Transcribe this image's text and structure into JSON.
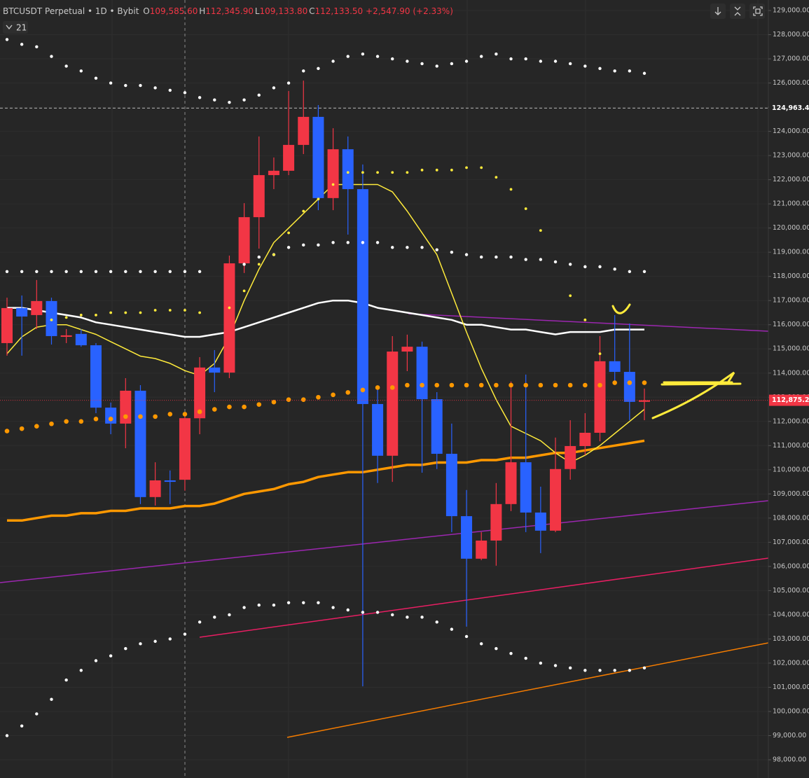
{
  "chart_data": {
    "type": "candlestick",
    "header": {
      "symbol": "BTCUSDT Perpetual • 1D • Bybit",
      "o_label": "O",
      "o": "109,585.60",
      "h_label": "H",
      "h": "112,345.90",
      "l_label": "L",
      "l": "109,133.80",
      "c_label": "C",
      "c": "112,133.50",
      "change": "+2,547.90",
      "change_pct": "(+2.33%)"
    },
    "indicator_count": 21,
    "up_color": "#f23645",
    "down_color": "#2962ff",
    "open": [
      115240,
      116690,
      116400,
      116980,
      115500,
      115620,
      115150,
      112570,
      111910,
      113270,
      108870,
      109560,
      109585.6,
      112130,
      114230,
      114020,
      118540,
      120450,
      122190,
      122370,
      123440,
      124600,
      121240,
      123260,
      121610,
      112720,
      110580,
      114890,
      115090,
      112920,
      110660,
      108080,
      106320,
      107070,
      108580,
      110310,
      108230,
      107480,
      110030,
      110980,
      111530,
      114490,
      114050,
      112810
    ],
    "high": [
      117120,
      117210,
      117850,
      117120,
      115820,
      115820,
      115240,
      112780,
      113790,
      113500,
      110310,
      109970,
      112345.9,
      114660,
      114950,
      118860,
      121030,
      123790,
      122920,
      125670,
      126100,
      125090,
      124130,
      123790,
      122630,
      113360,
      115530,
      115590,
      115300,
      113210,
      111910,
      109160,
      107420,
      109450,
      113650,
      113940,
      109300,
      111330,
      112050,
      112340,
      115530,
      116400,
      116050,
      113360
    ],
    "low": [
      114720,
      114720,
      115820,
      115180,
      115240,
      115090,
      112340,
      111470,
      110890,
      108580,
      108520,
      108580,
      109133.8,
      111470,
      113210,
      113790,
      118140,
      119150,
      121610,
      122190,
      123060,
      120740,
      120740,
      119730,
      101040,
      109450,
      109500,
      114080,
      109880,
      110030,
      107420,
      103510,
      106260,
      106030,
      108290,
      107420,
      106550,
      107420,
      109590,
      110600,
      111180,
      113650,
      112050,
      112050
    ],
    "close": [
      116690,
      116340,
      116980,
      115530,
      115560,
      115150,
      112570,
      111910,
      113270,
      108870,
      109560,
      109500,
      112133.5,
      114230,
      114020,
      118540,
      120450,
      122190,
      122370,
      123440,
      124600,
      121240,
      123260,
      121610,
      112720,
      110580,
      114890,
      115090,
      112920,
      110660,
      108080,
      106320,
      107070,
      108580,
      110310,
      108230,
      107480,
      110030,
      110980,
      111530,
      114490,
      114050,
      112810,
      112875.2
    ],
    "overlays": [
      {
        "style": "line",
        "color": "#ff9800",
        "line_width": 3.5,
        "values": [
          107900,
          107900,
          108000,
          108100,
          108100,
          108200,
          108200,
          108300,
          108300,
          108400,
          108400,
          108400,
          108500,
          108500,
          108600,
          108800,
          109000,
          109100,
          109200,
          109400,
          109500,
          109700,
          109800,
          109900,
          109900,
          110000,
          110100,
          110200,
          110200,
          110300,
          110300,
          110300,
          110400,
          110400,
          110500,
          110500,
          110600,
          110700,
          110700,
          110800,
          110900,
          111000,
          111100,
          111200
        ]
      },
      {
        "style": "line",
        "color": "#ffffff",
        "line_width": 2.5,
        "values": [
          116700,
          116700,
          116600,
          116500,
          116400,
          116300,
          116100,
          116000,
          115900,
          115800,
          115700,
          115600,
          115500,
          115500,
          115600,
          115700,
          115900,
          116100,
          116300,
          116500,
          116700,
          116900,
          117000,
          117000,
          116900,
          116700,
          116600,
          116500,
          116400,
          116300,
          116200,
          116000,
          116000,
          115900,
          115800,
          115800,
          115700,
          115600,
          115700,
          115700,
          115700,
          115800,
          115800,
          115800
        ]
      },
      {
        "style": "line",
        "color": "#ffeb3b",
        "line_width": 1.5,
        "values": [
          114800,
          115500,
          115900,
          116000,
          116000,
          115800,
          115600,
          115300,
          115000,
          114700,
          114600,
          114400,
          114100,
          113900,
          114400,
          115500,
          117000,
          118300,
          119400,
          120000,
          120600,
          121200,
          121800,
          121800,
          121800,
          121800,
          121500,
          120700,
          119800,
          118900,
          117300,
          115700,
          114200,
          112900,
          111800,
          111500,
          111200,
          110700,
          110300,
          110600,
          111000,
          111500,
          112000,
          112500
        ]
      },
      {
        "style": "dots",
        "color": "#ffffff",
        "marker_size": 2.2,
        "values": [
          127800,
          127600,
          127500,
          127100,
          126700,
          126500,
          126200,
          126000,
          125900,
          125900,
          125800,
          125700,
          125600,
          125400,
          125300,
          125200,
          125300,
          125500,
          125800,
          126000,
          126500,
          126600,
          126900,
          127100,
          127200,
          127100,
          127000,
          126900,
          126800,
          126700,
          126800,
          126900,
          127100,
          127200,
          127000,
          127000,
          126900,
          126900,
          126800,
          126700,
          126600,
          126500,
          126500,
          126400
        ]
      },
      {
        "style": "dots",
        "color": "#ffffff",
        "marker_size": 2.2,
        "values": [
          118200,
          118200,
          118200,
          118200,
          118200,
          118200,
          118200,
          118200,
          118200,
          118200,
          118200,
          118200,
          118200,
          118200,
          null,
          null,
          118500,
          118800,
          118900,
          119200,
          119300,
          119300,
          119400,
          119400,
          119400,
          119400,
          119200,
          119200,
          119200,
          119100,
          119000,
          118900,
          118800,
          118800,
          118800,
          118700,
          118700,
          118600,
          118500,
          118400,
          118400,
          118300,
          118200,
          118200
        ]
      },
      {
        "style": "dots",
        "color": "#ffeb3b",
        "marker_size": 1.9,
        "values": [
          null,
          null,
          null,
          116200,
          116300,
          116400,
          116400,
          116500,
          116500,
          116500,
          116600,
          116600,
          116600,
          116500,
          null,
          116700,
          117400,
          118500,
          118900,
          119800,
          120700,
          121200,
          121800,
          122300,
          122300,
          122300,
          122300,
          122300,
          122400,
          122400,
          122400,
          122500,
          122500,
          122100,
          121600,
          120800,
          119900,
          null,
          117200,
          116200,
          114800,
          null,
          null,
          null
        ]
      },
      {
        "style": "dots",
        "color": "#ff9800",
        "marker_size": 3.3,
        "values": [
          111600,
          111700,
          111800,
          111900,
          112000,
          112000,
          112100,
          112100,
          112200,
          112200,
          112200,
          112300,
          112300,
          112400,
          112500,
          112600,
          112600,
          112700,
          112800,
          112900,
          112900,
          113000,
          113100,
          113200,
          113300,
          113400,
          113400,
          113500,
          113500,
          113500,
          113500,
          113500,
          113500,
          113500,
          113500,
          113500,
          113500,
          113500,
          113500,
          113500,
          113500,
          113600,
          113600,
          113600
        ]
      },
      {
        "style": "dots",
        "color": "#ffffff",
        "marker_size": 2.2,
        "values": [
          99000,
          99400,
          99900,
          100500,
          101300,
          101700,
          102100,
          102300,
          102600,
          102800,
          102900,
          103000,
          103200,
          103700,
          103900,
          104000,
          104300,
          104400,
          104400,
          104500,
          104500,
          104500,
          104300,
          104200,
          104100,
          104100,
          104000,
          103900,
          103900,
          103700,
          103400,
          103100,
          102800,
          102600,
          102400,
          102200,
          102000,
          101900,
          101800,
          101700,
          101700,
          101700,
          101700,
          101800
        ]
      }
    ],
    "ylim": [
      97247,
      129435
    ],
    "yticks": [
      {
        "value": 98000,
        "label": "98,000.00"
      },
      {
        "value": 99000,
        "label": "99,000.00"
      },
      {
        "value": 100000,
        "label": "100,000.00"
      },
      {
        "value": 101000,
        "label": "101,000.00"
      },
      {
        "value": 102000,
        "label": "102,000.00"
      },
      {
        "value": 103000,
        "label": "103,000.00"
      },
      {
        "value": 104000,
        "label": "104,000.00"
      },
      {
        "value": 105000,
        "label": "105,000.00"
      },
      {
        "value": 106000,
        "label": "106,000.00"
      },
      {
        "value": 107000,
        "label": "107,000.00"
      },
      {
        "value": 108000,
        "label": "108,000.00"
      },
      {
        "value": 109000,
        "label": "109,000.00"
      },
      {
        "value": 110000,
        "label": "110,000.00"
      },
      {
        "value": 111000,
        "label": "111,000.00"
      },
      {
        "value": 112000,
        "label": "112,000.00"
      },
      {
        "value": 113000,
        "label": "113,000.00"
      },
      {
        "value": 114000,
        "label": "114,000.00"
      },
      {
        "value": 115000,
        "label": "115,000.00"
      },
      {
        "value": 116000,
        "label": "116,000.00"
      },
      {
        "value": 117000,
        "label": "117,000.00"
      },
      {
        "value": 118000,
        "label": "118,000.00"
      },
      {
        "value": 119000,
        "label": "119,000.00"
      },
      {
        "value": 120000,
        "label": "120,000.00"
      },
      {
        "value": 121000,
        "label": "121,000.00"
      },
      {
        "value": 122000,
        "label": "122,000.00"
      },
      {
        "value": 123000,
        "label": "123,000.00"
      },
      {
        "value": 124000,
        "label": "124,000.00"
      },
      {
        "value": 125000,
        "label": "125,000.00"
      },
      {
        "value": 126000,
        "label": "126,000.00"
      },
      {
        "value": 127000,
        "label": "127,000.00"
      },
      {
        "value": 128000,
        "label": "128,000.00"
      },
      {
        "value": 129000,
        "label": "129,000.00"
      }
    ],
    "price_lines": [
      {
        "value": 124963.41,
        "label": "124,963.41",
        "color": "#d9d9d9"
      },
      {
        "value": 112875.2,
        "label": "112,875.20",
        "color": "#f23645"
      }
    ],
    "grid": true
  }
}
